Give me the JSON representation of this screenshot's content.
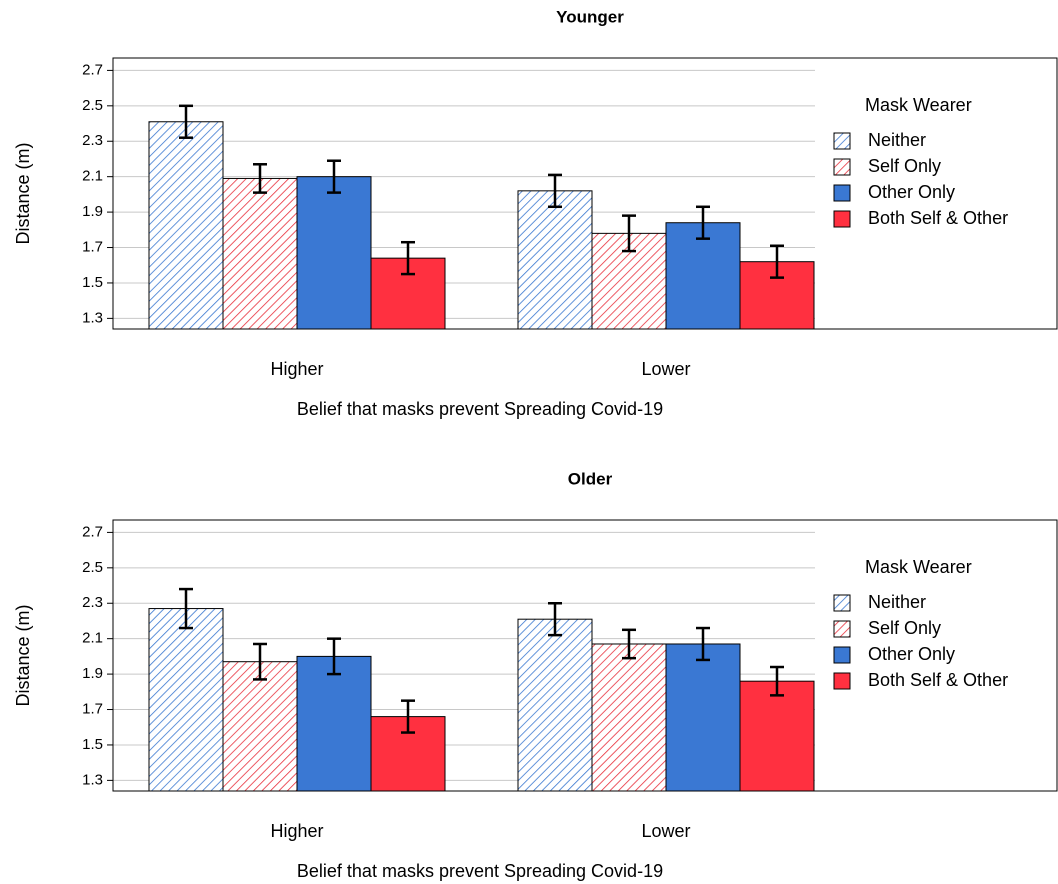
{
  "chart_data": [
    {
      "type": "bar",
      "title": "Younger",
      "xlabel": "Belief that masks prevent Spreading Covid-19",
      "ylabel": "Distance (m)",
      "categories": [
        "Higher",
        "Lower"
      ],
      "legend_title": "Mask Wearer",
      "series": [
        {
          "name": "Neither",
          "color": "#3a78d0",
          "hatch": true,
          "values": [
            2.41,
            2.02
          ],
          "errors": [
            0.09,
            0.09
          ]
        },
        {
          "name": "Self Only",
          "color": "#e8303c",
          "hatch": true,
          "values": [
            2.09,
            1.78
          ],
          "errors": [
            0.08,
            0.1
          ]
        },
        {
          "name": "Other Only",
          "color": "#3a78d3",
          "hatch": false,
          "values": [
            2.1,
            1.84
          ],
          "errors": [
            0.09,
            0.09
          ]
        },
        {
          "name": "Both Self & Other",
          "color": "#ff3040",
          "hatch": false,
          "values": [
            1.64,
            1.62
          ],
          "errors": [
            0.09,
            0.09
          ]
        }
      ],
      "ylim": [
        1.24,
        2.77
      ],
      "yticks": [
        1.3,
        1.5,
        1.7,
        1.9,
        2.1,
        2.3,
        2.5,
        2.7
      ],
      "grid": true
    },
    {
      "type": "bar",
      "title": "Older",
      "xlabel": "Belief that masks prevent Spreading Covid-19",
      "ylabel": "Distance (m)",
      "categories": [
        "Higher",
        "Lower"
      ],
      "legend_title": "Mask Wearer",
      "series": [
        {
          "name": "Neither",
          "color": "#3a78d0",
          "hatch": true,
          "values": [
            2.27,
            2.21
          ],
          "errors": [
            0.11,
            0.09
          ]
        },
        {
          "name": "Self Only",
          "color": "#e8303c",
          "hatch": true,
          "values": [
            1.97,
            2.07
          ],
          "errors": [
            0.1,
            0.08
          ]
        },
        {
          "name": "Other Only",
          "color": "#3a78d3",
          "hatch": false,
          "values": [
            2.0,
            2.07
          ],
          "errors": [
            0.1,
            0.09
          ]
        },
        {
          "name": "Both Self & Other",
          "color": "#ff3040",
          "hatch": false,
          "values": [
            1.66,
            1.86
          ],
          "errors": [
            0.09,
            0.08
          ]
        }
      ],
      "ylim": [
        1.24,
        2.77
      ],
      "yticks": [
        1.3,
        1.5,
        1.7,
        1.9,
        2.1,
        2.3,
        2.5,
        2.7
      ],
      "grid": true
    }
  ]
}
